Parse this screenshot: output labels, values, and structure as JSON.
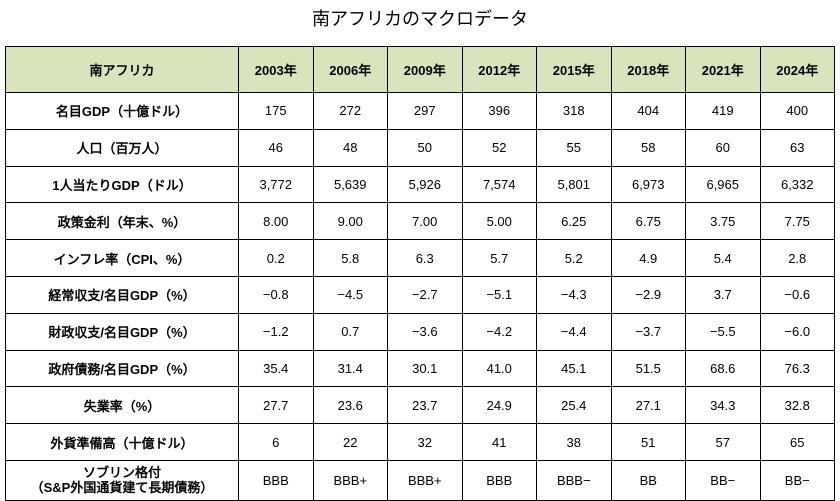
{
  "title": "南アフリカのマクロデータ",
  "table": {
    "corner": "南アフリカ",
    "years": [
      "2003年",
      "2006年",
      "2009年",
      "2012年",
      "2015年",
      "2018年",
      "2021年",
      "2024年"
    ],
    "rows": [
      {
        "label": "名目GDP（十億ドル）",
        "values": [
          "175",
          "272",
          "297",
          "396",
          "318",
          "404",
          "419",
          "400"
        ]
      },
      {
        "label": "人口（百万人）",
        "values": [
          "46",
          "48",
          "50",
          "52",
          "55",
          "58",
          "60",
          "63"
        ]
      },
      {
        "label": "1人当たりGDP（ドル）",
        "values": [
          "3,772",
          "5,639",
          "5,926",
          "7,574",
          "5,801",
          "6,973",
          "6,965",
          "6,332"
        ]
      },
      {
        "label": "政策金利（年末、%）",
        "values": [
          "8.00",
          "9.00",
          "7.00",
          "5.00",
          "6.25",
          "6.75",
          "3.75",
          "7.75"
        ]
      },
      {
        "label": "インフレ率（CPI、%）",
        "values": [
          "0.2",
          "5.8",
          "6.3",
          "5.7",
          "5.2",
          "4.9",
          "5.4",
          "2.8"
        ]
      },
      {
        "label": "経常収支/名目GDP（%）",
        "values": [
          "−0.8",
          "−4.5",
          "−2.7",
          "−5.1",
          "−4.3",
          "−2.9",
          "3.7",
          "−0.6"
        ]
      },
      {
        "label": "財政収支/名目GDP（%）",
        "values": [
          "−1.2",
          "0.7",
          "−3.6",
          "−4.2",
          "−4.4",
          "−3.7",
          "−5.5",
          "−6.0"
        ]
      },
      {
        "label": "政府債務/名目GDP（%）",
        "values": [
          "35.4",
          "31.4",
          "30.1",
          "41.0",
          "45.1",
          "51.5",
          "68.6",
          "76.3"
        ]
      },
      {
        "label": "失業率（%）",
        "values": [
          "27.7",
          "23.6",
          "23.7",
          "24.9",
          "25.4",
          "27.1",
          "34.3",
          "32.8"
        ]
      },
      {
        "label": "外貨準備高（十億ドル）",
        "values": [
          "6",
          "22",
          "32",
          "41",
          "38",
          "51",
          "57",
          "65"
        ]
      }
    ],
    "rating": {
      "label_line1": "ソブリン格付",
      "label_line2": "（S&P外国通貨建て長期債務）",
      "values": [
        "BBB",
        "BBB+",
        "BBB+",
        "BBB",
        "BBB−",
        "BB",
        "BB−",
        "BB−"
      ]
    }
  }
}
